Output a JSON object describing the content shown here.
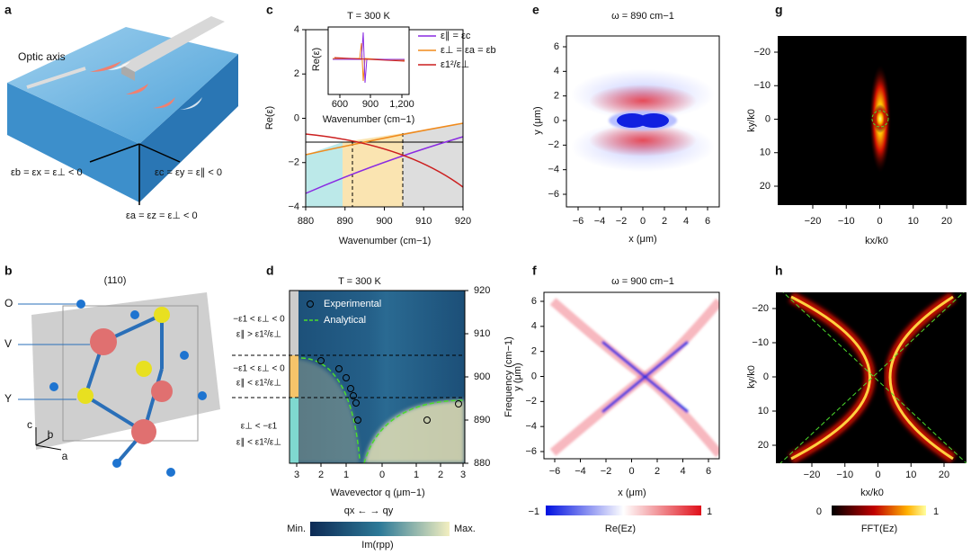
{
  "panels": {
    "a": {
      "label": "a",
      "optic_axis": "Optic axis",
      "eq_b": "εb = εx = ε⊥ < 0",
      "eq_c": "εc = εy = ε∥ < 0",
      "eq_a": "εa = εz = ε⊥ < 0"
    },
    "b": {
      "label": "b",
      "plane": "(110)",
      "atoms": [
        "O",
        "V",
        "Y"
      ],
      "axes": [
        "c",
        "b",
        "a"
      ]
    },
    "c": {
      "label": "c",
      "inset_title": "T = 300 K",
      "inset_ylabel": "Re(ε)",
      "inset_xticks": [
        "600",
        "900",
        "1,200"
      ],
      "inset_xlabel": "Wavenumber (cm−1)",
      "legend": [
        "ε∥ = εc",
        "ε⊥ = εa = εb",
        "ε1²/ε⊥"
      ],
      "yticks": [
        "4",
        "2",
        "0",
        "−2",
        "−4"
      ],
      "ylabel": "Re(ε)",
      "xticks": [
        "880",
        "890",
        "900",
        "910",
        "920"
      ],
      "xlabel": "Wavenumber (cm−1)"
    },
    "d": {
      "label": "d",
      "title": "T = 300 K",
      "legend": [
        "Experimental",
        "Analytical"
      ],
      "regions": [
        "−ε1 < ε⊥ < 0",
        "ε∥ > ε1²/ε⊥",
        "−ε1 < ε⊥ < 0",
        "ε∥ < ε1²/ε⊥",
        "ε⊥ < −ε1",
        "ε∥ < ε1²/ε⊥"
      ],
      "xticks": [
        "3",
        "2",
        "1",
        "0",
        "1",
        "2",
        "3"
      ],
      "xlabel": "Wavevector q (μm−1)",
      "direction": "qx ← → qy",
      "yticks": [
        "920",
        "910",
        "900",
        "890",
        "880"
      ],
      "ylabel": "Frequency (cm−1)",
      "colorbar_min": "Min.",
      "colorbar_max": "Max.",
      "colorbar_label": "Im(rpp)"
    },
    "e": {
      "label": "e",
      "title": "ω =  890 cm−1",
      "yticks": [
        "6",
        "4",
        "2",
        "0",
        "−2",
        "−4",
        "−6"
      ],
      "xticks": [
        "−6",
        "−4",
        "−2",
        "0",
        "2",
        "4",
        "6"
      ],
      "xlabel": "x (μm)",
      "ylabel": "y (μm)"
    },
    "f": {
      "label": "f",
      "title": "ω =  900 cm−1",
      "yticks": [
        "6",
        "4",
        "2",
        "0",
        "−2",
        "−4",
        "−6"
      ],
      "xticks": [
        "−6",
        "−4",
        "−2",
        "0",
        "2",
        "4",
        "6"
      ],
      "xlabel": "x (μm)",
      "ylabel": "y (μm)",
      "colorbar_min": "−1",
      "colorbar_max": "1",
      "colorbar_label": "Re(Ez)"
    },
    "g": {
      "label": "g",
      "yticks": [
        "−20",
        "−10",
        "0",
        "10",
        "20"
      ],
      "xticks": [
        "−20",
        "−10",
        "0",
        "10",
        "20"
      ],
      "xlabel": "kx/k0",
      "ylabel": "ky/k0"
    },
    "h": {
      "label": "h",
      "yticks": [
        "−20",
        "−10",
        "0",
        "10",
        "20"
      ],
      "xticks": [
        "−20",
        "−10",
        "0",
        "10",
        "20"
      ],
      "xlabel": "kx/k0",
      "ylabel": "ky/k0",
      "colorbar_min": "0",
      "colorbar_max": "1",
      "colorbar_label": "FFT(Ez)"
    }
  }
}
